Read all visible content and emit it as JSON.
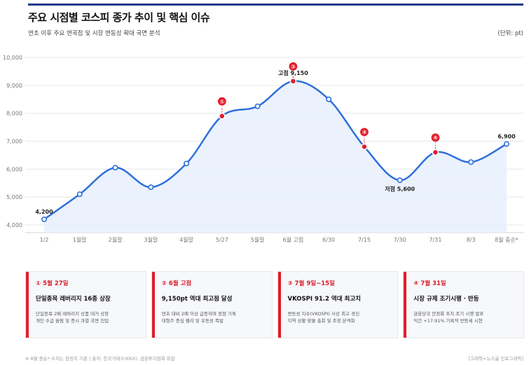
{
  "header": {
    "title": "주요 시점별 코스피 종가 추이 및 핵심 이슈",
    "subtitle": "연초 이후 주요 변곡점 및 시장 변동성 확대 국면 분석",
    "unit": "(단위: pt)"
  },
  "chart_data": {
    "type": "line",
    "categories": [
      "1/2",
      "1월말",
      "2월말",
      "3월말",
      "4월말",
      "5/27",
      "5월말",
      "6월 고점",
      "6/30",
      "7/15",
      "7/30",
      "7/31",
      "8/3",
      "8월 중순*"
    ],
    "series": [
      {
        "values": [
          4200,
          5100,
          6050,
          5350,
          6200,
          7900,
          8250,
          9150,
          8500,
          6800,
          5600,
          6600,
          6250,
          6900
        ]
      }
    ],
    "yticks": [
      4000,
      5000,
      6000,
      7000,
      8000,
      9000,
      10000
    ],
    "ytick_labels": [
      "4,000",
      "5,000",
      "6,000",
      "7,000",
      "8,000",
      "9,000",
      "10,000"
    ],
    "ylim": [
      3800,
      10200
    ],
    "grid": true,
    "highlight_indices": [
      5,
      7,
      9,
      11
    ],
    "markers": [
      {
        "index": 5,
        "label": "①"
      },
      {
        "index": 7,
        "label": "②"
      },
      {
        "index": 9,
        "label": "③"
      },
      {
        "index": 11,
        "label": "④"
      }
    ],
    "annotations": [
      {
        "index": 0,
        "text": "4,200",
        "pos": "above"
      },
      {
        "index": 7,
        "text": "고점 9,150",
        "pos": "above"
      },
      {
        "index": 10,
        "text": "저점 5,600",
        "pos": "below"
      },
      {
        "index": 13,
        "text": "6,900",
        "pos": "above"
      }
    ],
    "line_color": "#2f6fdb",
    "highlight_color": "#e11d2a"
  },
  "cards": [
    {
      "head": "① 5월 27일",
      "title": "단일종목 레버리지 16종 상장",
      "desc1": "단일종목 2배 레버리지 상품 대거 상장",
      "desc2": "개인 수급 쏠림 및 증시 과열 국면 진입"
    },
    {
      "head": "② 6월 고점",
      "title": "9,150pt 역대 최고점 달성",
      "desc1": "연초 대비 2배 이상 급등하며 정점 기록",
      "desc2": "대형주 중심 랠리 및 유동성 폭발"
    },
    {
      "head": "③ 7월 9일~15일",
      "title": "VKOSPI 91.2 역대 최고치",
      "desc1": "변동성 지수(VKOSPI) 사상 최고 경신",
      "desc2": "지역 상황 맞물 출회 및 조정 본격화"
    },
    {
      "head": "④ 7월 31일",
      "title": "시장 규제 조기시행 · 반등",
      "desc1": "금융당국 안정화 조치 조기 시행 발표",
      "desc2": "익간 +17.91% 기록적 반등세 시현"
    }
  ],
  "footer": {
    "note": "※ 8월 중순* 수치는 잠정치 기준 | 출처: 한국거래소(KRX), 금융투자협회 취합",
    "credit": "[그래픽=뉴스룸 인포그래픽]"
  }
}
